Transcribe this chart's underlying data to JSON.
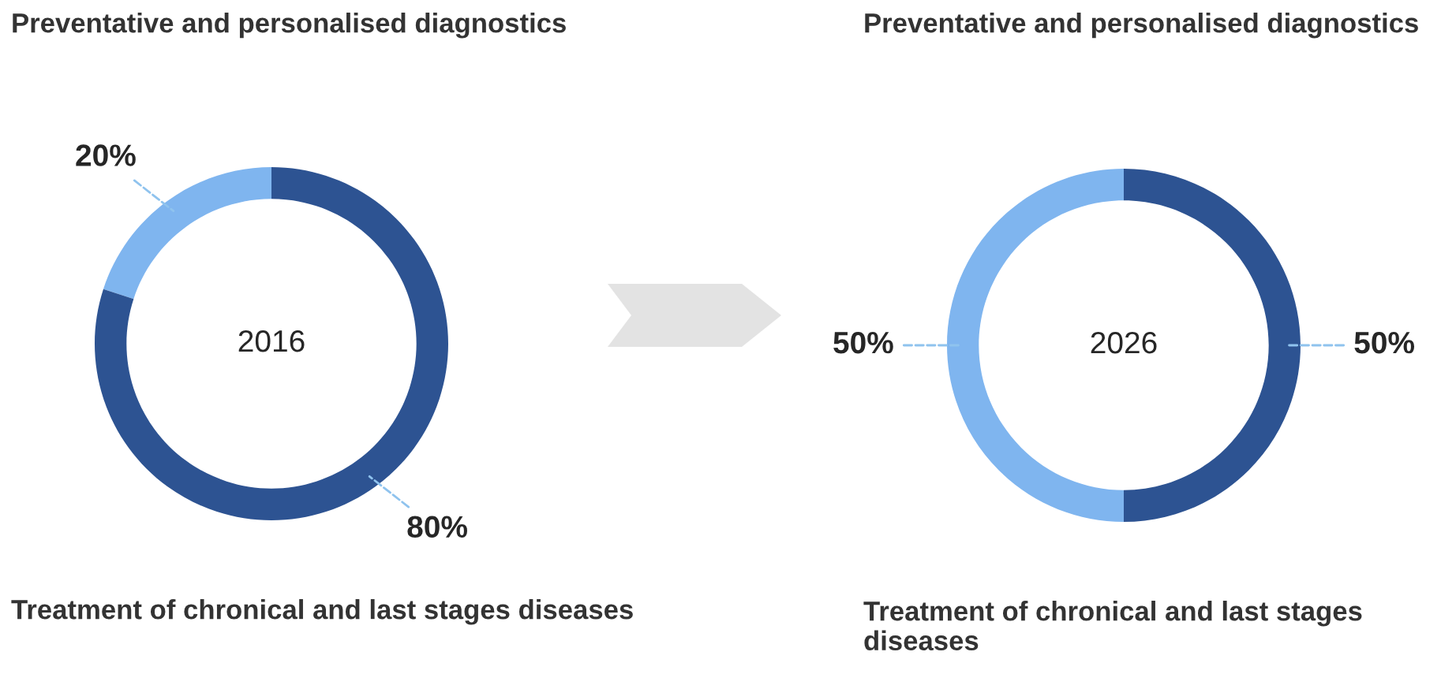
{
  "chart_data": [
    {
      "type": "donut",
      "categories": [
        "Preventative and personalised diagnostics",
        "Treatment of chronical and last stages diseases"
      ],
      "values": [
        20,
        80
      ],
      "colors": [
        "#7fb5ef",
        "#2d5392"
      ],
      "value_labels": [
        "20%",
        "80%"
      ],
      "annotations": [
        "2016"
      ]
    },
    {
      "type": "donut",
      "categories": [
        "Preventative and personalised diagnostics",
        "Treatment of chronical and last stages diseases"
      ],
      "values": [
        50,
        50
      ],
      "colors": [
        "#7fb5ef",
        "#2d5392"
      ],
      "value_labels": [
        "50%",
        "50%"
      ],
      "annotations": [
        "2026"
      ]
    }
  ]
}
